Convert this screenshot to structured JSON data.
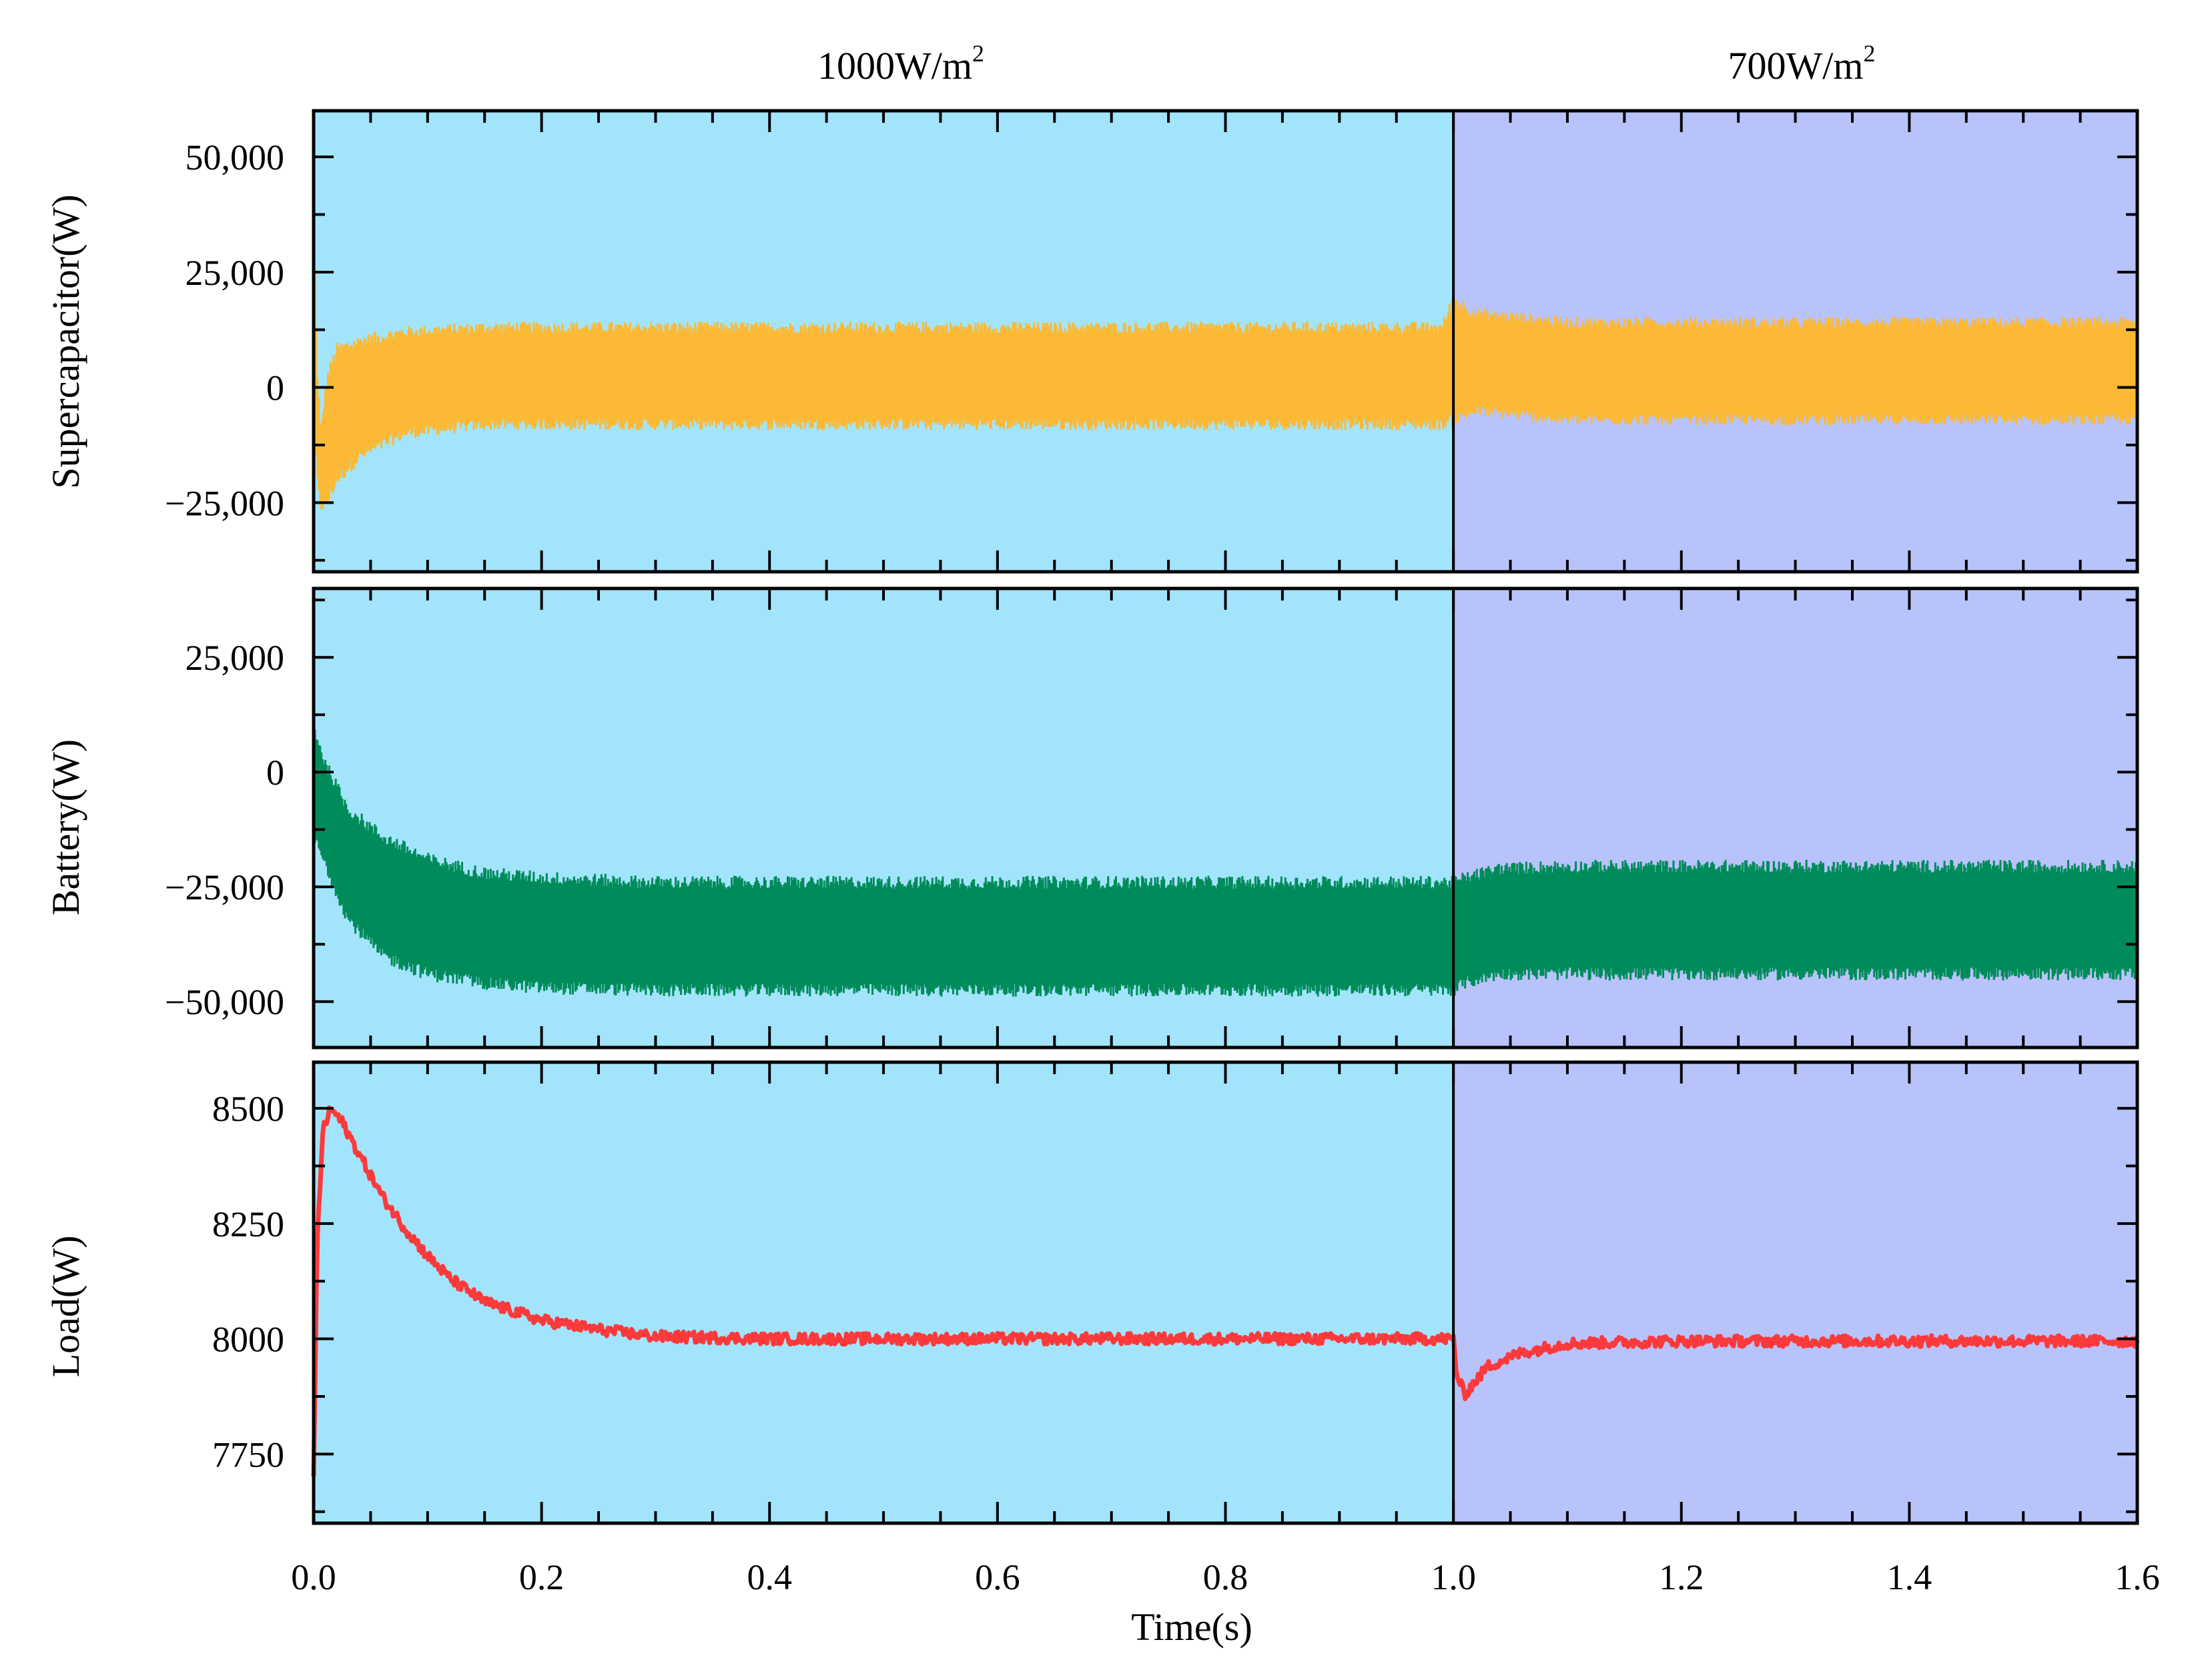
{
  "chart_data": {
    "type": "line",
    "title": "",
    "xlabel": "Time(s)",
    "xlim": [
      0.0,
      1.6
    ],
    "x_ticks": [
      0.0,
      0.2,
      0.4,
      0.6,
      0.8,
      1.0,
      1.2,
      1.4,
      1.6
    ],
    "x_tick_labels": [
      "0.0",
      "0.2",
      "0.4",
      "0.6",
      "0.8",
      "1.0",
      "1.2",
      "1.4",
      "1.6"
    ],
    "regions": [
      {
        "name": "1000W/m2",
        "label_main": "1000W/m",
        "label_sup": "2",
        "x_start": 0.0,
        "x_end": 1.0,
        "color": "#a3e4fd"
      },
      {
        "name": "700W/m2",
        "label_main": "700W/m",
        "label_sup": "2",
        "x_start": 1.0,
        "x_end": 1.6,
        "color": "#b8c3fb"
      }
    ],
    "grid": false,
    "panels": [
      {
        "name": "supercapacitor",
        "ylabel": "Supercapacitor(W)",
        "ylim": [
          -40000,
          60000
        ],
        "y_ticks": [
          -25000,
          0,
          25000,
          50000
        ],
        "y_tick_labels": [
          "−25,000",
          "0",
          "25,000",
          "50,000"
        ],
        "series": {
          "name": "Supercapacitor",
          "color": "#fbb935",
          "t": [
            0.0,
            0.003,
            0.006,
            0.012,
            0.02,
            0.04,
            0.08,
            0.15,
            0.3,
            0.6,
            0.99,
            1.0,
            1.02,
            1.1,
            1.3,
            1.6
          ],
          "upper": [
            36000,
            5000,
            -10000,
            2000,
            8000,
            10000,
            12000,
            13000,
            13000,
            13000,
            13000,
            19000,
            16000,
            14000,
            14000,
            14000
          ],
          "lower": [
            0,
            -20000,
            -26000,
            -25000,
            -20000,
            -15000,
            -10000,
            -8000,
            -8000,
            -8000,
            -8000,
            -7000,
            -5000,
            -7000,
            -7000,
            -7000
          ]
        }
      },
      {
        "name": "battery",
        "ylabel": "Battery(W)",
        "ylim": [
          -60000,
          40000
        ],
        "y_ticks": [
          -50000,
          -25000,
          0,
          25000
        ],
        "y_tick_labels": [
          "−50,000",
          "−25,000",
          "0",
          "25,000"
        ],
        "series": {
          "name": "Battery",
          "color": "#008c5a",
          "t": [
            0.0,
            0.01,
            0.03,
            0.06,
            0.1,
            0.15,
            0.2,
            0.3,
            1.0,
            1.01,
            1.04,
            1.1,
            1.6
          ],
          "upper": [
            10000,
            2000,
            -8000,
            -14000,
            -19000,
            -22000,
            -23000,
            -24000,
            -24000,
            -23000,
            -21000,
            -20500,
            -20500
          ],
          "lower": [
            -14000,
            -20000,
            -32000,
            -40000,
            -44000,
            -46000,
            -47000,
            -47500,
            -47500,
            -46000,
            -44000,
            -44000,
            -44000
          ]
        }
      },
      {
        "name": "load",
        "ylabel": "Load(W)",
        "ylim": [
          7600,
          8600
        ],
        "y_ticks": [
          7750,
          8000,
          8250,
          8500
        ],
        "y_tick_labels": [
          "7750",
          "8000",
          "8250",
          "8500"
        ],
        "series": {
          "name": "Load",
          "color": "#fc3a3c",
          "t": [
            0.0,
            0.003,
            0.008,
            0.015,
            0.025,
            0.04,
            0.06,
            0.08,
            0.1,
            0.12,
            0.15,
            0.2,
            0.25,
            0.3,
            0.4,
            1.0,
            1.003,
            1.01,
            1.03,
            1.06,
            1.1,
            1.2,
            1.6
          ],
          "values": [
            7700,
            8200,
            8450,
            8500,
            8470,
            8400,
            8310,
            8240,
            8180,
            8130,
            8080,
            8040,
            8020,
            8005,
            8000,
            8000,
            7920,
            7880,
            7940,
            7970,
            7990,
            7995,
            7995
          ],
          "noise": 12
        }
      }
    ]
  }
}
